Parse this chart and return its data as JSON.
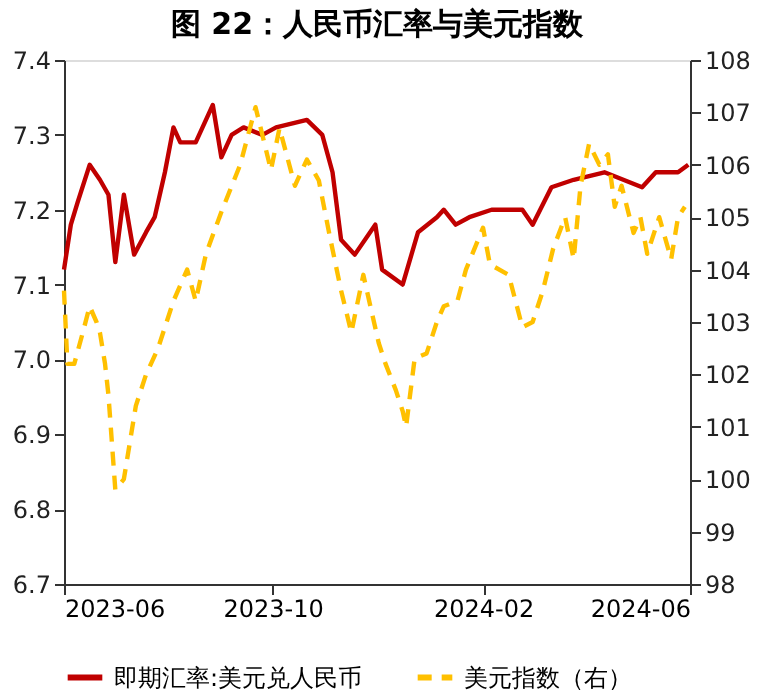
{
  "chart_data": {
    "type": "line",
    "title": "图 22：人民币汇率与美元指数",
    "xlim": [
      "2023-06-01",
      "2024-06-01"
    ],
    "xticks": [
      "2023-06",
      "2023-10",
      "2024-02",
      "2024-06"
    ],
    "ylim": [
      6.7,
      7.4
    ],
    "yticks": [
      6.7,
      6.8,
      6.9,
      {
        "value": 7,
        "label": "7.0"
      },
      7.1,
      7.2,
      7.3,
      7.4
    ],
    "y2lim": [
      98,
      108
    ],
    "y2ticks": [
      98,
      99,
      100,
      101,
      102,
      103,
      104,
      105,
      106,
      107,
      108
    ],
    "legend": "bottom",
    "grid": false,
    "series": [
      {
        "name": "即期汇率:美元兑人民币",
        "color": "#c00000",
        "line_style": "solid",
        "x": [
          "2023-06-01",
          "2023-06-05",
          "2023-06-09",
          "2023-06-16",
          "2023-06-22",
          "2023-06-27",
          "2023-07-01",
          "2023-07-06",
          "2023-07-12",
          "2023-07-19",
          "2023-07-24",
          "2023-07-30",
          "2023-08-04",
          "2023-08-08",
          "2023-08-17",
          "2023-08-21",
          "2023-08-27",
          "2023-09-01",
          "2023-09-07",
          "2023-09-14",
          "2023-09-25",
          "2023-10-03",
          "2023-10-21",
          "2023-10-30",
          "2023-11-05",
          "2023-11-10",
          "2023-11-18",
          "2023-11-30",
          "2023-12-04",
          "2023-12-16",
          "2023-12-25",
          "2024-01-05",
          "2024-01-09",
          "2024-01-16",
          "2024-01-24",
          "2024-02-06",
          "2024-02-24",
          "2024-03-01",
          "2024-03-12",
          "2024-03-25",
          "2024-04-12",
          "2024-04-23",
          "2024-05-04",
          "2024-05-12",
          "2024-05-25",
          "2024-05-31"
        ],
        "values": [
          7.12,
          7.18,
          7.21,
          7.26,
          7.24,
          7.22,
          7.13,
          7.22,
          7.14,
          7.17,
          7.19,
          7.25,
          7.31,
          7.29,
          7.29,
          7.31,
          7.34,
          7.27,
          7.3,
          7.31,
          7.3,
          7.31,
          7.32,
          7.3,
          7.25,
          7.16,
          7.14,
          7.18,
          7.12,
          7.1,
          7.17,
          7.19,
          7.2,
          7.18,
          7.19,
          7.2,
          7.2,
          7.18,
          7.23,
          7.24,
          7.25,
          7.24,
          7.23,
          7.25,
          7.25,
          7.26
        ]
      },
      {
        "name": "美元指数（右）",
        "color": "#ffc000",
        "line_style": "dashed",
        "axis": "y2",
        "x": [
          "2023-06-01",
          "2023-06-03",
          "2023-06-07",
          "2023-06-12",
          "2023-06-16",
          "2023-06-20",
          "2023-06-22",
          "2023-06-25",
          "2023-06-27",
          "2023-07-01",
          "2023-07-06",
          "2023-07-13",
          "2023-07-19",
          "2023-07-26",
          "2023-08-04",
          "2023-08-12",
          "2023-08-17",
          "2023-08-23",
          "2023-09-01",
          "2023-09-12",
          "2023-09-21",
          "2023-09-30",
          "2023-10-05",
          "2023-10-14",
          "2023-10-21",
          "2023-10-28",
          "2023-11-03",
          "2023-11-10",
          "2023-11-16",
          "2023-11-23",
          "2023-12-02",
          "2023-12-06",
          "2023-12-12",
          "2023-12-16",
          "2023-12-18",
          "2023-12-23",
          "2023-12-30",
          "2024-01-05",
          "2024-01-09",
          "2024-01-17",
          "2024-01-22",
          "2024-02-01",
          "2024-02-05",
          "2024-02-16",
          "2024-02-24",
          "2024-03-01",
          "2024-03-07",
          "2024-03-13",
          "2024-03-20",
          "2024-03-25",
          "2024-03-29",
          "2024-04-03",
          "2024-04-09",
          "2024-04-14",
          "2024-04-18",
          "2024-04-22",
          "2024-04-29",
          "2024-05-03",
          "2024-05-07",
          "2024-05-14",
          "2024-05-21",
          "2024-05-25",
          "2024-05-29"
        ],
        "values": [
          103.6,
          102.2,
          102.2,
          102.8,
          103.3,
          103.0,
          102.8,
          102.2,
          101.6,
          99.8,
          100.0,
          101.4,
          102.0,
          102.5,
          103.4,
          104.0,
          103.4,
          104.3,
          105.1,
          106.0,
          107.1,
          105.9,
          106.7,
          105.6,
          106.1,
          105.7,
          104.7,
          103.6,
          102.8,
          103.9,
          102.6,
          102.2,
          101.7,
          101.3,
          101.0,
          102.3,
          102.4,
          103.0,
          103.3,
          103.4,
          104.0,
          104.8,
          104.1,
          103.9,
          102.9,
          103.0,
          103.6,
          104.4,
          105.0,
          104.2,
          105.6,
          106.4,
          106.0,
          106.2,
          105.2,
          105.6,
          104.7,
          105.0,
          104.3,
          105.0,
          104.2,
          105.0,
          105.2
        ]
      }
    ]
  }
}
